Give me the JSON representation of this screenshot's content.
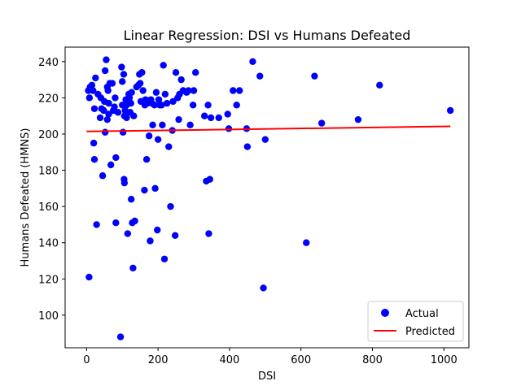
{
  "chart_data": {
    "type": "scatter",
    "title": "Linear Regression: DSI vs Humans Defeated",
    "xlabel": "DSI",
    "ylabel": "Humans Defeated (HMNS)",
    "xlim": [
      -60,
      1070
    ],
    "ylim": [
      82,
      248
    ],
    "xticks": [
      0,
      200,
      400,
      600,
      800,
      1000
    ],
    "yticks": [
      100,
      120,
      140,
      160,
      180,
      200,
      220,
      240
    ],
    "grid": false,
    "legend_position": "lower-right",
    "series": [
      {
        "name": "Actual",
        "kind": "scatter",
        "color": "#0000ff",
        "points": [
          [
            5,
            224
          ],
          [
            8,
            220
          ],
          [
            10,
            226
          ],
          [
            15,
            227
          ],
          [
            18,
            224
          ],
          [
            7,
            121
          ],
          [
            20,
            195
          ],
          [
            22,
            186
          ],
          [
            25,
            231
          ],
          [
            22,
            214
          ],
          [
            28,
            150
          ],
          [
            32,
            222
          ],
          [
            38,
            209
          ],
          [
            40,
            220
          ],
          [
            42,
            214
          ],
          [
            45,
            177
          ],
          [
            48,
            213
          ],
          [
            50,
            218
          ],
          [
            52,
            235
          ],
          [
            52,
            201
          ],
          [
            55,
            241
          ],
          [
            58,
            208
          ],
          [
            58,
            226
          ],
          [
            60,
            224
          ],
          [
            62,
            217
          ],
          [
            62,
            211
          ],
          [
            65,
            228
          ],
          [
            68,
            183
          ],
          [
            72,
            228
          ],
          [
            75,
            213
          ],
          [
            78,
            215
          ],
          [
            80,
            220
          ],
          [
            82,
            187
          ],
          [
            82,
            151
          ],
          [
            88,
            212
          ],
          [
            95,
            88
          ],
          [
            98,
            237
          ],
          [
            100,
            229
          ],
          [
            100,
            216
          ],
          [
            102,
            201
          ],
          [
            104,
            233
          ],
          [
            105,
            175
          ],
          [
            106,
            173
          ],
          [
            106,
            210
          ],
          [
            108,
            213
          ],
          [
            110,
            219
          ],
          [
            112,
            209
          ],
          [
            112,
            216
          ],
          [
            115,
            145
          ],
          [
            118,
            222
          ],
          [
            120,
            220
          ],
          [
            122,
            212
          ],
          [
            124,
            217
          ],
          [
            125,
            164
          ],
          [
            126,
            223
          ],
          [
            128,
            151
          ],
          [
            130,
            126
          ],
          [
            132,
            210
          ],
          [
            135,
            152
          ],
          [
            140,
            226
          ],
          [
            145,
            227
          ],
          [
            148,
            233
          ],
          [
            150,
            228
          ],
          [
            152,
            218
          ],
          [
            155,
            234
          ],
          [
            158,
            224
          ],
          [
            162,
            169
          ],
          [
            163,
            216
          ],
          [
            165,
            219
          ],
          [
            168,
            186
          ],
          [
            170,
            217
          ],
          [
            175,
            199
          ],
          [
            178,
            141
          ],
          [
            180,
            219
          ],
          [
            183,
            217
          ],
          [
            185,
            205
          ],
          [
            190,
            216
          ],
          [
            192,
            170
          ],
          [
            195,
            223
          ],
          [
            198,
            147
          ],
          [
            200,
            197
          ],
          [
            202,
            219
          ],
          [
            205,
            216
          ],
          [
            210,
            216
          ],
          [
            212,
            205
          ],
          [
            215,
            238
          ],
          [
            218,
            131
          ],
          [
            220,
            222
          ],
          [
            225,
            217
          ],
          [
            230,
            193
          ],
          [
            235,
            160
          ],
          [
            240,
            202
          ],
          [
            242,
            218
          ],
          [
            248,
            144
          ],
          [
            250,
            234
          ],
          [
            255,
            220
          ],
          [
            258,
            208
          ],
          [
            260,
            222
          ],
          [
            265,
            230
          ],
          [
            270,
            224
          ],
          [
            280,
            223
          ],
          [
            285,
            224
          ],
          [
            290,
            205
          ],
          [
            298,
            216
          ],
          [
            300,
            224
          ],
          [
            305,
            234
          ],
          [
            330,
            210
          ],
          [
            335,
            174
          ],
          [
            340,
            216
          ],
          [
            342,
            145
          ],
          [
            345,
            175
          ],
          [
            348,
            209
          ],
          [
            370,
            209
          ],
          [
            395,
            211
          ],
          [
            398,
            203
          ],
          [
            410,
            224
          ],
          [
            420,
            216
          ],
          [
            428,
            224
          ],
          [
            448,
            203
          ],
          [
            450,
            193
          ],
          [
            465,
            240
          ],
          [
            485,
            232
          ],
          [
            495,
            115
          ],
          [
            500,
            197
          ],
          [
            615,
            140
          ],
          [
            638,
            232
          ],
          [
            658,
            206
          ],
          [
            760,
            208
          ],
          [
            820,
            227
          ],
          [
            1018,
            213
          ]
        ]
      },
      {
        "name": "Predicted",
        "kind": "line",
        "color": "#ff0000",
        "intercept": 201.45,
        "slope": 0.00273,
        "x_range": [
          0,
          1018
        ]
      }
    ]
  }
}
